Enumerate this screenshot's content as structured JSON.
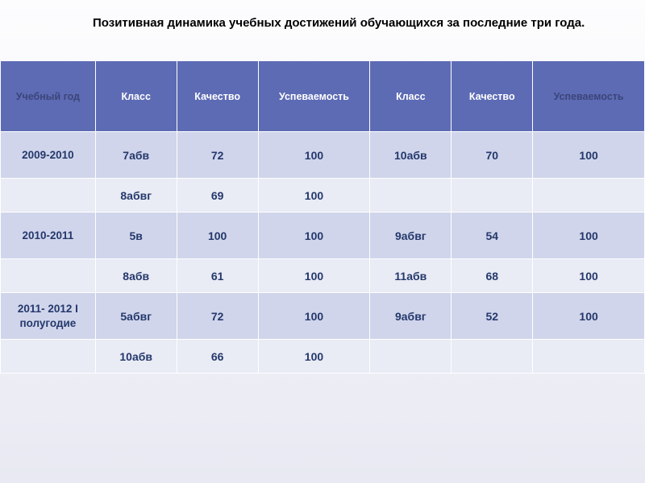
{
  "title": "Позитивная динамика учебных достижений  обучающихся за последние три года.",
  "headers": {
    "c0": "Учебный год",
    "c1": "Класс",
    "c2": "Качество",
    "c3": "Успеваемость",
    "c4": "Класс",
    "c5": "Качество",
    "c6": "Успеваемость"
  },
  "rows": [
    {
      "c0": "2009-2010",
      "c1": "7абв",
      "c2": "72",
      "c3": "100",
      "c4": "10абв",
      "c5": "70",
      "c6": "100"
    },
    {
      "c0": "",
      "c1": "8абвг",
      "c2": "69",
      "c3": "100",
      "c4": "",
      "c5": "",
      "c6": ""
    },
    {
      "c0": "2010-2011",
      "c1": "5в",
      "c2": "100",
      "c3": "100",
      "c4": "9абвг",
      "c5": "54",
      "c6": "100"
    },
    {
      "c0": "",
      "c1": "8абв",
      "c2": "61",
      "c3": "100",
      "c4": "11абв",
      "c5": "68",
      "c6": "100"
    },
    {
      "c0": "2011- 2012 I полугодие",
      "c1": "5абвг",
      "c2": "72",
      "c3": "100",
      "c4": "9абвг",
      "c5": "52",
      "c6": "100"
    },
    {
      "c0": "",
      "c1": "10абв",
      "c2": "66",
      "c3": "100",
      "c4": "",
      "c5": "",
      "c6": ""
    }
  ],
  "styling": {
    "header_bg": "#5d6bb5",
    "header_text": "#ffffff",
    "header_muted_text": "#3b4579",
    "row_odd_bg": "#d0d5eb",
    "row_even_bg": "#e9ebf5",
    "cell_text_color": "#24386b",
    "body_bg_gradient": [
      "#fdfdfe",
      "#e8e9f2"
    ],
    "title_fontsize": 15,
    "header_fontsize": 12.5,
    "cell_fontsize": 14,
    "col_widths_pct": [
      14,
      12,
      12,
      16.5,
      12,
      12,
      16.5
    ]
  }
}
